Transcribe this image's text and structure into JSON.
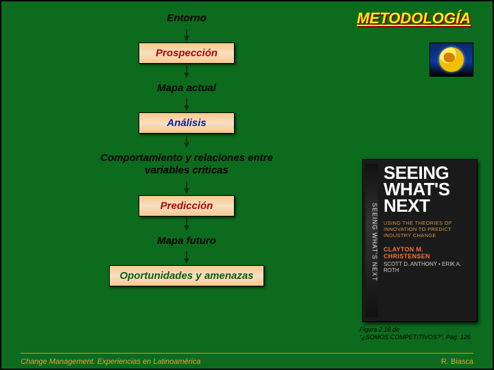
{
  "header": {
    "title": "METODOLOGÍA"
  },
  "flow": {
    "arrow": {
      "color": "#08330f",
      "width": 2,
      "height": 18
    },
    "steps": [
      {
        "kind": "plain",
        "label": "Entorno"
      },
      {
        "kind": "box",
        "label": "Prospección",
        "color_class": "c-red"
      },
      {
        "kind": "plain",
        "label": "Mapa actual"
      },
      {
        "kind": "box",
        "label": "Análisis",
        "color_class": "c-blue"
      },
      {
        "kind": "plain",
        "label": "Comportamiento y relaciones entre variables críticas",
        "wide": true
      },
      {
        "kind": "box",
        "label": "Predicción",
        "color_class": "c-red"
      },
      {
        "kind": "plain",
        "label": "Mapa futuro"
      },
      {
        "kind": "box",
        "label": "Oportunidades y amenazas",
        "color_class": "c-green",
        "wide": true
      }
    ]
  },
  "book": {
    "spine": "SEEING WHAT'S NEXT",
    "title_words": [
      "SEEING",
      "WHAT'S",
      "NEXT"
    ],
    "title_fontsize": 26,
    "subtitle": "USING THE THEORIES OF INNOVATION TO PREDICT INDUSTRY CHANGE",
    "author_primary": "CLAYTON M. CHRISTENSEN",
    "author_secondary": "SCOTT D. ANTHONY • ERIK A. ROTH"
  },
  "caption": {
    "line1": "Figura 2.16 de",
    "line2": "\"¿SOMOS COMPETITIVOS?\", Pág. 126"
  },
  "footer": {
    "left": "Change Management. Experiencias en Latinoamérica",
    "right": "R. Biasca"
  },
  "colors": {
    "background": "#0d6b1e",
    "header_text": "#fff000",
    "header_shadow": "#8b0000",
    "box_gradient_outer": "#f9c98b",
    "box_gradient_inner": "#f7dfc3",
    "footer_text": "#e9a23a",
    "footer_line": "#d99a00"
  }
}
